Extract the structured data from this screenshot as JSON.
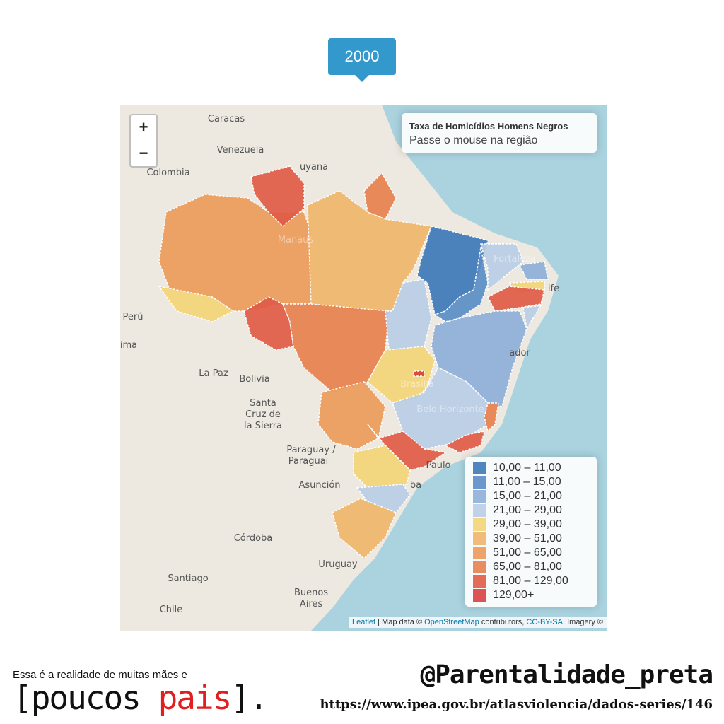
{
  "year_badge": "2000",
  "zoom_controls": {
    "zoom_in": "+",
    "zoom_out": "−"
  },
  "info_box": {
    "title": "Taxa de Homicídios Homens Negros",
    "hint": "Passe o mouse na região"
  },
  "legend": [
    {
      "label": "10,00 – 11,00",
      "color": "#3d78b8"
    },
    {
      "label": "11,00 – 15,00",
      "color": "#5a8dc6"
    },
    {
      "label": "15,00 – 21,00",
      "color": "#8eaed8"
    },
    {
      "label": "21,00 – 29,00",
      "color": "#b8cde6"
    },
    {
      "label": "29,00 – 39,00",
      "color": "#f3d477"
    },
    {
      "label": "39,00 – 51,00",
      "color": "#efb56a"
    },
    {
      "label": "51,00 – 65,00",
      "color": "#eb9a5a"
    },
    {
      "label": "65,00 – 81,00",
      "color": "#e7804e"
    },
    {
      "label": "81,00 – 129,00",
      "color": "#e05b45"
    },
    {
      "label": "129,00+",
      "color": "#d94040"
    }
  ],
  "place_labels": [
    "Caracas",
    "Venezuela",
    "Colombia",
    "uyana",
    "Perú",
    "ima",
    "La Paz",
    "Bolivia",
    "Santa",
    "Cruz de",
    "la Sierra",
    "Paraguay /",
    "Paraguai",
    "Asunción",
    "Córdoba",
    "Uruguay",
    "Santiago",
    "Buenos",
    "Aires",
    "Chile",
    "Manaus",
    "Fortaleza",
    "ife",
    "ador",
    "Paulo",
    "ba",
    "Brasília",
    "Belo Horizonte"
  ],
  "attribution": [
    "Leaflet",
    " | Map data © ",
    "OpenStreetMap",
    " contributors, ",
    "CC-BY-SA",
    ", Imagery ©"
  ],
  "footer": {
    "tagline": "Essa é a realidade de muitas mães e",
    "slogan": [
      "[poucos ",
      "pais",
      "]."
    ],
    "handle": "@Parentalidade_preta",
    "source_url": "https://www.ipea.gov.br/atlasviolencia/dados-series/146"
  }
}
